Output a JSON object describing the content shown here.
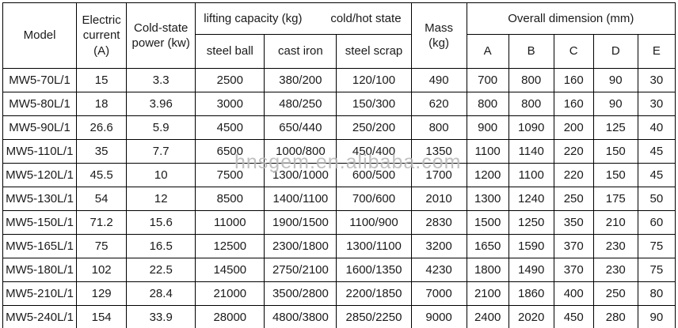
{
  "watermark": "hnsgem.en.alibaba.com",
  "table": {
    "headers": {
      "model": "Model",
      "electric_current": "Electric current (A)",
      "cold_state_power": "Cold-state power (kw)",
      "lifting_capacity": "lifting capacity (kg)",
      "cold_hot_state": "cold/hot state",
      "sub_lifting": [
        "steel ball",
        "cast iron",
        "steel scrap"
      ],
      "mass": "Mass (kg)",
      "overall_dimension": "Overall dimension (mm)",
      "dimension_letters": [
        "A",
        "B",
        "C",
        "D",
        "E"
      ]
    },
    "rows": [
      [
        "MW5-70L/1",
        "15",
        "3.3",
        "2500",
        "380/200",
        "120/100",
        "490",
        "700",
        "800",
        "160",
        "90",
        "30"
      ],
      [
        "MW5-80L/1",
        "18",
        "3.96",
        "3000",
        "480/250",
        "150/300",
        "620",
        "800",
        "800",
        "160",
        "90",
        "30"
      ],
      [
        "MW5-90L/1",
        "26.6",
        "5.9",
        "4500",
        "650/440",
        "250/200",
        "800",
        "900",
        "1090",
        "200",
        "125",
        "40"
      ],
      [
        "MW5-110L/1",
        "35",
        "7.7",
        "6500",
        "1000/800",
        "450/400",
        "1350",
        "1100",
        "1140",
        "220",
        "150",
        "45"
      ],
      [
        "MW5-120L/1",
        "45.5",
        "10",
        "7500",
        "1300/1000",
        "600/500",
        "1700",
        "1200",
        "1100",
        "220",
        "150",
        "45"
      ],
      [
        "MW5-130L/1",
        "54",
        "12",
        "8500",
        "1400/1100",
        "700/600",
        "2010",
        "1300",
        "1240",
        "250",
        "175",
        "50"
      ],
      [
        "MW5-150L/1",
        "71.2",
        "15.6",
        "11000",
        "1900/1500",
        "1100/900",
        "2830",
        "1500",
        "1250",
        "350",
        "210",
        "60"
      ],
      [
        "MW5-165L/1",
        "75",
        "16.5",
        "12500",
        "2300/1800",
        "1300/1100",
        "3200",
        "1650",
        "1590",
        "370",
        "230",
        "75"
      ],
      [
        "MW5-180L/1",
        "102",
        "22.5",
        "14500",
        "2750/2100",
        "1600/1350",
        "4230",
        "1800",
        "1490",
        "370",
        "230",
        "75"
      ],
      [
        "MW5-210L/1",
        "129",
        "28.4",
        "21000",
        "3500/2800",
        "2200/1850",
        "7000",
        "2100",
        "1860",
        "400",
        "250",
        "80"
      ],
      [
        "MW5-240L/1",
        "154",
        "33.9",
        "28000",
        "4800/3800",
        "2850/2250",
        "9000",
        "2400",
        "2020",
        "450",
        "280",
        "90"
      ]
    ]
  }
}
